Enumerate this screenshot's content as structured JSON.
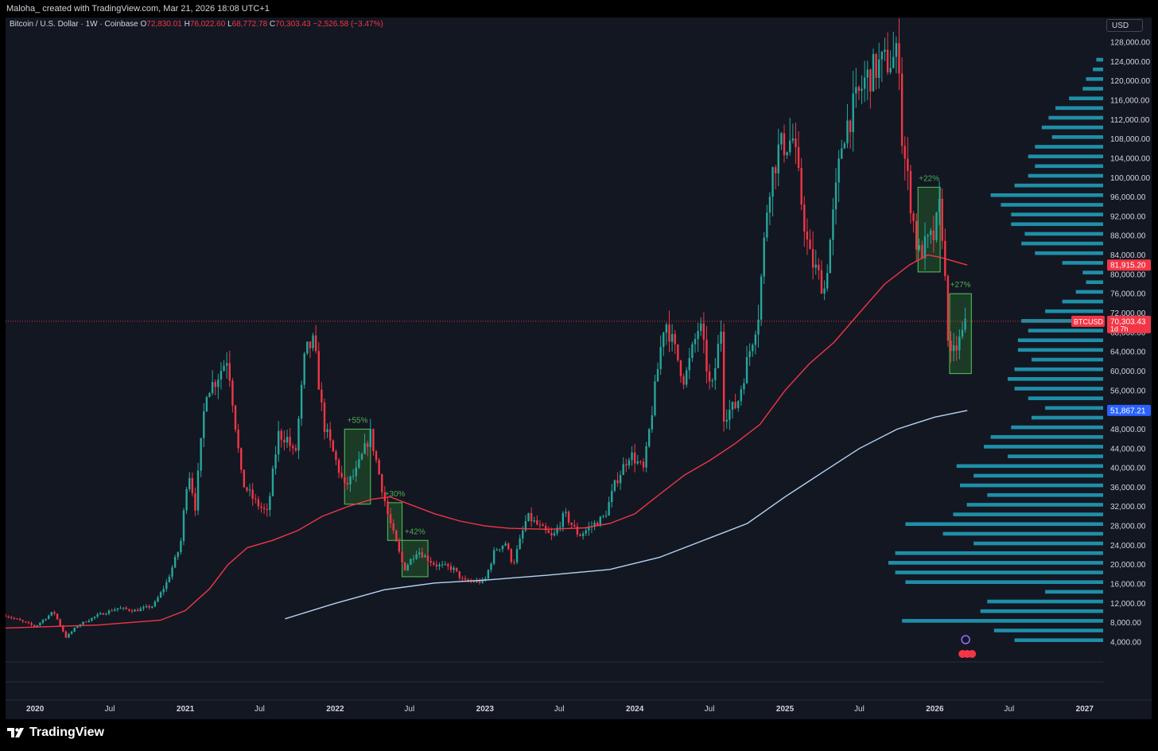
{
  "header": {
    "credit": "Maloha_ created with TradingView.com, Mar 21, 2026 18:08 UTC+1"
  },
  "legend": {
    "symbol": "Bitcoin / U.S. Dollar · 1W · Coinbase",
    "o_label": "O",
    "o": "72,830.01",
    "h_label": "H",
    "h": "76,022.60",
    "l_label": "L",
    "l": "68,772.78",
    "c_label": "C",
    "c": "70,303.43",
    "change": "−2,526.58 (−3.47%)"
  },
  "currency_button": "USD",
  "footer": {
    "brand": "TradingView"
  },
  "colors": {
    "up": "#26a69a",
    "down": "#f23645",
    "ma_red": "#f23645",
    "ma_blue": "#b3d4f5",
    "volume_profile": "#22a4c0",
    "box_fill": "#2e7d32",
    "box_stroke": "#4caf50",
    "background": "#131722",
    "text": "#d1d4dc"
  },
  "chart_data": {
    "type": "candlestick",
    "symbol": "BTCUSD",
    "interval": "1W",
    "exchange": "Coinbase",
    "y_scale": "linear",
    "ylim": [
      2000,
      130000
    ],
    "xlim": [
      "2019-10-21",
      "2027-02-15"
    ],
    "grid": false,
    "y_ticks": [
      "128,000.00",
      "124,000.00",
      "120,000.00",
      "116,000.00",
      "112,000.00",
      "108,000.00",
      "104,000.00",
      "100,000.00",
      "96,000.00",
      "92,000.00",
      "88,000.00",
      "84,000.00",
      "80,000.00",
      "76,000.00",
      "72,000.00",
      "68,000.00",
      "64,000.00",
      "60,000.00",
      "56,000.00",
      "52,000.00",
      "48,000.00",
      "44,000.00",
      "40,000.00",
      "36,000.00",
      "32,000.00",
      "28,000.00",
      "24,000.00",
      "20,000.00",
      "16,000.00",
      "12,000.00",
      "8,000.00",
      "4,000.00"
    ],
    "x_ticks": [
      {
        "label": "2020",
        "date": "2020-01-01"
      },
      {
        "label": "Jul",
        "date": "2020-07-01"
      },
      {
        "label": "2021",
        "date": "2021-01-01"
      },
      {
        "label": "Jul",
        "date": "2021-07-01"
      },
      {
        "label": "2022",
        "date": "2022-01-01"
      },
      {
        "label": "Jul",
        "date": "2022-07-01"
      },
      {
        "label": "2023",
        "date": "2023-01-01"
      },
      {
        "label": "Jul",
        "date": "2023-07-01"
      },
      {
        "label": "2024",
        "date": "2024-01-01"
      },
      {
        "label": "Jul",
        "date": "2024-07-01"
      },
      {
        "label": "2025",
        "date": "2025-01-01"
      },
      {
        "label": "Jul",
        "date": "2025-07-01"
      },
      {
        "label": "2026",
        "date": "2026-01-01"
      },
      {
        "label": "Jul",
        "date": "2026-07-01"
      },
      {
        "label": "2027",
        "date": "2027-01-01"
      }
    ],
    "close_path": [
      [
        "2019-10-21",
        9500
      ],
      [
        "2020-01-01",
        7200
      ],
      [
        "2020-02-15",
        10300
      ],
      [
        "2020-03-16",
        5000
      ],
      [
        "2020-04-15",
        7500
      ],
      [
        "2020-06-01",
        9500
      ],
      [
        "2020-07-20",
        11000
      ],
      [
        "2020-09-01",
        10500
      ],
      [
        "2020-10-15",
        11500
      ],
      [
        "2020-11-15",
        16000
      ],
      [
        "2020-12-20",
        24000
      ],
      [
        "2021-01-08",
        40000
      ],
      [
        "2021-01-25",
        32000
      ],
      [
        "2021-02-20",
        56000
      ],
      [
        "2021-03-15",
        58000
      ],
      [
        "2021-04-14",
        63000
      ],
      [
        "2021-05-19",
        37000
      ],
      [
        "2021-06-20",
        33000
      ],
      [
        "2021-07-20",
        30500
      ],
      [
        "2021-08-15",
        47000
      ],
      [
        "2021-09-07",
        46000
      ],
      [
        "2021-09-25",
        42000
      ],
      [
        "2021-10-20",
        64000
      ],
      [
        "2021-11-10",
        66000
      ],
      [
        "2021-12-04",
        49000
      ],
      [
        "2022-01-24",
        36000
      ],
      [
        "2022-02-20",
        39000
      ],
      [
        "2022-03-28",
        47000
      ],
      [
        "2022-05-10",
        30000
      ],
      [
        "2022-06-18",
        19000
      ],
      [
        "2022-07-20",
        23000
      ],
      [
        "2022-09-01",
        20000
      ],
      [
        "2022-10-15",
        19200
      ],
      [
        "2022-11-10",
        16500
      ],
      [
        "2022-12-31",
        16500
      ],
      [
        "2023-01-25",
        23000
      ],
      [
        "2023-02-20",
        24500
      ],
      [
        "2023-03-10",
        20000
      ],
      [
        "2023-04-14",
        30000
      ],
      [
        "2023-06-15",
        25500
      ],
      [
        "2023-07-14",
        30500
      ],
      [
        "2023-08-18",
        26000
      ],
      [
        "2023-10-20",
        30000
      ],
      [
        "2023-11-15",
        37000
      ],
      [
        "2023-12-20",
        43000
      ],
      [
        "2024-01-23",
        39500
      ],
      [
        "2024-03-14",
        71000
      ],
      [
        "2024-05-01",
        58000
      ],
      [
        "2024-06-07",
        70000
      ],
      [
        "2024-07-05",
        55000
      ],
      [
        "2024-07-29",
        69000
      ],
      [
        "2024-08-05",
        51000
      ],
      [
        "2024-09-06",
        53000
      ],
      [
        "2024-10-28",
        72000
      ],
      [
        "2024-11-22",
        98000
      ],
      [
        "2024-12-17",
        106000
      ],
      [
        "2025-01-20",
        108000
      ],
      [
        "2025-02-28",
        84000
      ],
      [
        "2025-04-07",
        77000
      ],
      [
        "2025-05-22",
        109000
      ],
      [
        "2025-07-14",
        120000
      ],
      [
        "2025-08-14",
        123000
      ],
      [
        "2025-10-06",
        125000
      ],
      [
        "2025-10-10",
        110000
      ],
      [
        "2025-11-21",
        84000
      ],
      [
        "2025-12-31",
        88000
      ],
      [
        "2026-01-15",
        95000
      ],
      [
        "2026-02-06",
        62000
      ],
      [
        "2026-03-01",
        66000
      ],
      [
        "2026-03-21",
        70303
      ]
    ],
    "series": [
      {
        "name": "",
        "type": "moving-average",
        "color": "#f23645",
        "points": [
          [
            "2019-10-21",
            6900
          ],
          [
            "2020-06-01",
            7500
          ],
          [
            "2020-11-01",
            8500
          ],
          [
            "2021-01-01",
            10500
          ],
          [
            "2021-03-01",
            15000
          ],
          [
            "2021-04-15",
            20000
          ],
          [
            "2021-06-01",
            23500
          ],
          [
            "2021-08-01",
            25000
          ],
          [
            "2021-10-01",
            27000
          ],
          [
            "2021-12-01",
            30000
          ],
          [
            "2022-02-01",
            32000
          ],
          [
            "2022-04-01",
            33500
          ],
          [
            "2022-05-15",
            34000
          ],
          [
            "2022-06-15",
            33000
          ],
          [
            "2022-09-01",
            30500
          ],
          [
            "2022-11-01",
            29000
          ],
          [
            "2023-01-01",
            28000
          ],
          [
            "2023-03-01",
            27500
          ],
          [
            "2023-06-01",
            27300
          ],
          [
            "2023-09-01",
            27600
          ],
          [
            "2023-11-01",
            28500
          ],
          [
            "2024-01-01",
            30500
          ],
          [
            "2024-03-01",
            34500
          ],
          [
            "2024-05-01",
            38500
          ],
          [
            "2024-07-01",
            41500
          ],
          [
            "2024-09-01",
            45000
          ],
          [
            "2024-11-01",
            49000
          ],
          [
            "2025-01-01",
            56000
          ],
          [
            "2025-03-01",
            61500
          ],
          [
            "2025-05-01",
            66000
          ],
          [
            "2025-07-01",
            72000
          ],
          [
            "2025-09-01",
            78000
          ],
          [
            "2025-11-01",
            82000
          ],
          [
            "2025-12-15",
            84000
          ],
          [
            "2026-01-15",
            83500
          ],
          [
            "2026-03-21",
            81915.2
          ]
        ]
      },
      {
        "name": "",
        "type": "moving-average",
        "color": "#b3d4f5",
        "points": [
          [
            "2021-09-01",
            8800
          ],
          [
            "2022-01-01",
            12000
          ],
          [
            "2022-05-01",
            14800
          ],
          [
            "2022-09-01",
            16200
          ],
          [
            "2023-01-01",
            16800
          ],
          [
            "2023-06-01",
            17800
          ],
          [
            "2023-11-01",
            19000
          ],
          [
            "2024-03-01",
            21500
          ],
          [
            "2024-07-01",
            25500
          ],
          [
            "2024-10-01",
            28500
          ],
          [
            "2025-01-01",
            34000
          ],
          [
            "2025-04-01",
            39000
          ],
          [
            "2025-07-01",
            44000
          ],
          [
            "2025-10-01",
            48000
          ],
          [
            "2026-01-01",
            50500
          ],
          [
            "2026-03-21",
            51867.21
          ]
        ]
      }
    ],
    "annotations": [
      {
        "label": "+55%",
        "x0": "2022-01-24",
        "x1": "2022-03-28",
        "y0": 32500,
        "y1": 48000
      },
      {
        "label": "+30%",
        "x0": "2022-05-09",
        "x1": "2022-06-13",
        "y0": 25000,
        "y1": 32800
      },
      {
        "label": "+42%",
        "x0": "2022-06-13",
        "x1": "2022-08-15",
        "y0": 17500,
        "y1": 25000
      },
      {
        "label": "+22%",
        "x0": "2025-11-21",
        "x1": "2026-01-14",
        "y0": 80500,
        "y1": 98000
      },
      {
        "label": "+27%",
        "x0": "2026-02-06",
        "x1": "2026-03-31",
        "y0": 59500,
        "y1": 76000
      }
    ],
    "price_labels": [
      {
        "text": "81,915.20",
        "value": 81915.2,
        "color": "#f23645"
      },
      {
        "text": "51,867.21",
        "value": 51867.21,
        "color": "#2962ff"
      }
    ],
    "last_price": {
      "symbol": "BTCUSD",
      "value_text": "70,303.43",
      "value": 70303.43,
      "countdown": "1d 7h"
    },
    "volume_profile": [
      [
        124000,
        2
      ],
      [
        122000,
        3
      ],
      [
        120000,
        5
      ],
      [
        118000,
        6
      ],
      [
        116000,
        10
      ],
      [
        114000,
        14
      ],
      [
        112000,
        16
      ],
      [
        110000,
        18
      ],
      [
        108000,
        15
      ],
      [
        106000,
        20
      ],
      [
        104000,
        22
      ],
      [
        102000,
        20
      ],
      [
        100000,
        22
      ],
      [
        98000,
        26
      ],
      [
        96000,
        33
      ],
      [
        94000,
        30
      ],
      [
        92000,
        27
      ],
      [
        90000,
        27
      ],
      [
        88000,
        23
      ],
      [
        86000,
        24
      ],
      [
        84000,
        20
      ],
      [
        82000,
        12
      ],
      [
        80000,
        6
      ],
      [
        78000,
        5
      ],
      [
        76000,
        8
      ],
      [
        74000,
        12
      ],
      [
        72000,
        17
      ],
      [
        70000,
        24
      ],
      [
        68000,
        22
      ],
      [
        66000,
        25
      ],
      [
        64000,
        25
      ],
      [
        62000,
        21
      ],
      [
        60000,
        26
      ],
      [
        58000,
        28
      ],
      [
        56000,
        26
      ],
      [
        54000,
        22
      ],
      [
        52000,
        17
      ],
      [
        50000,
        21
      ],
      [
        48000,
        27
      ],
      [
        46000,
        33
      ],
      [
        44000,
        35
      ],
      [
        42000,
        28
      ],
      [
        40000,
        43
      ],
      [
        38000,
        38
      ],
      [
        36000,
        42
      ],
      [
        34000,
        34
      ],
      [
        32000,
        40
      ],
      [
        30000,
        44
      ],
      [
        28000,
        58
      ],
      [
        26000,
        47
      ],
      [
        24000,
        38
      ],
      [
        22000,
        61
      ],
      [
        20000,
        63
      ],
      [
        18000,
        61
      ],
      [
        16000,
        58
      ],
      [
        14000,
        17
      ],
      [
        12000,
        34
      ],
      [
        10000,
        36
      ],
      [
        8000,
        59
      ],
      [
        6000,
        32
      ],
      [
        4000,
        26
      ]
    ]
  }
}
